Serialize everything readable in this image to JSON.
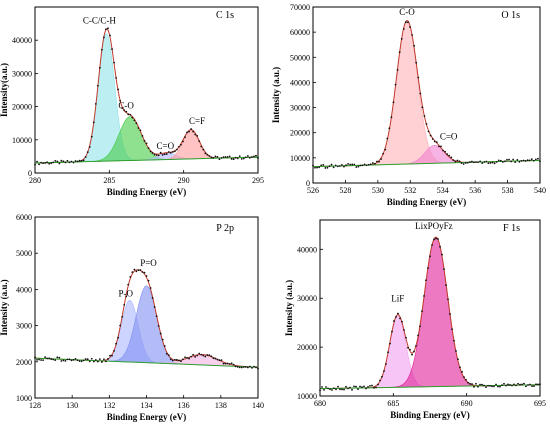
{
  "chart_data": [
    {
      "type": "line",
      "title": "C 1s",
      "xlabel": "Binding Energy (eV)",
      "ylabel": "Intensity(a.u.)",
      "xlim": [
        280,
        295
      ],
      "ylim": [
        0,
        50000
      ],
      "xticks": [
        280,
        285,
        290,
        295
      ],
      "yticks": [
        0,
        10000,
        20000,
        30000,
        40000
      ],
      "baseline": {
        "x": [
          280,
          295
        ],
        "y": [
          3000,
          4800
        ]
      },
      "peaks": [
        {
          "label": "C-C/C-H",
          "center": 284.8,
          "height": 42000,
          "width": 0.55,
          "color": "#8fe3ea"
        },
        {
          "label": "C-O",
          "center": 286.4,
          "height": 17000,
          "width": 0.75,
          "color": "#44cc44"
        },
        {
          "label": "C=O",
          "center": 288.9,
          "height": 6000,
          "width": 0.6,
          "color": "#b2b8ff"
        },
        {
          "label": "C=F",
          "center": 290.5,
          "height": 13000,
          "width": 0.55,
          "color": "#ff9b9b"
        }
      ]
    },
    {
      "type": "line",
      "title": "O 1s",
      "xlabel": "Binding Energy (eV)",
      "ylabel": "Intensity (a.u.)",
      "xlim": [
        526,
        540
      ],
      "ylim": [
        0,
        70000
      ],
      "xticks": [
        526,
        528,
        530,
        532,
        534,
        536,
        538,
        540
      ],
      "yticks": [
        0,
        10000,
        20000,
        30000,
        40000,
        50000,
        60000,
        70000
      ],
      "baseline": {
        "x": [
          526,
          540
        ],
        "y": [
          6500,
          9000
        ]
      },
      "peaks": [
        {
          "label": "C-O",
          "center": 531.8,
          "height": 64500,
          "width": 0.65,
          "color": "#ffb0b8"
        },
        {
          "label": "C=O",
          "center": 533.5,
          "height": 15000,
          "width": 0.6,
          "color": "#f080d0"
        }
      ]
    },
    {
      "type": "line",
      "title": "P 2p",
      "xlabel": "Binding Energy (eV)",
      "ylabel": "Intensity (a.u.)",
      "xlim": [
        128,
        140
      ],
      "ylim": [
        1000,
        6000
      ],
      "xticks": [
        128,
        130,
        132,
        134,
        136,
        138,
        140
      ],
      "yticks": [
        1000,
        2000,
        3000,
        4000,
        5000,
        6000
      ],
      "baseline": {
        "x": [
          128,
          140
        ],
        "y": [
          2100,
          1850
        ]
      },
      "peaks": [
        {
          "label": "P-O",
          "center": 133.1,
          "height": 3700,
          "width": 0.45,
          "color": "#aab8ff"
        },
        {
          "label": "P=O",
          "center": 134.0,
          "height": 4100,
          "width": 0.55,
          "color": "#8090f0"
        },
        {
          "label": "",
          "center": 137.0,
          "height": 2200,
          "width": 0.8,
          "color": "#f0b0e0"
        }
      ]
    },
    {
      "type": "line",
      "title": "F 1s",
      "xlabel": "Binding Energy (eV)",
      "ylabel": "Intensity (a.u.)",
      "xlim": [
        680,
        695
      ],
      "ylim": [
        10000,
        46000
      ],
      "xticks": [
        680,
        685,
        690,
        695
      ],
      "yticks": [
        10000,
        20000,
        30000,
        40000
      ],
      "baseline": {
        "x": [
          680,
          695
        ],
        "y": [
          11500,
          12300
        ]
      },
      "peaks": [
        {
          "label": "LiF",
          "center": 685.3,
          "height": 26500,
          "width": 0.55,
          "color": "#f4a0f0"
        },
        {
          "label": "LixPOyFz",
          "center": 687.9,
          "height": 42500,
          "width": 0.8,
          "color": "#e0209a"
        }
      ]
    }
  ]
}
